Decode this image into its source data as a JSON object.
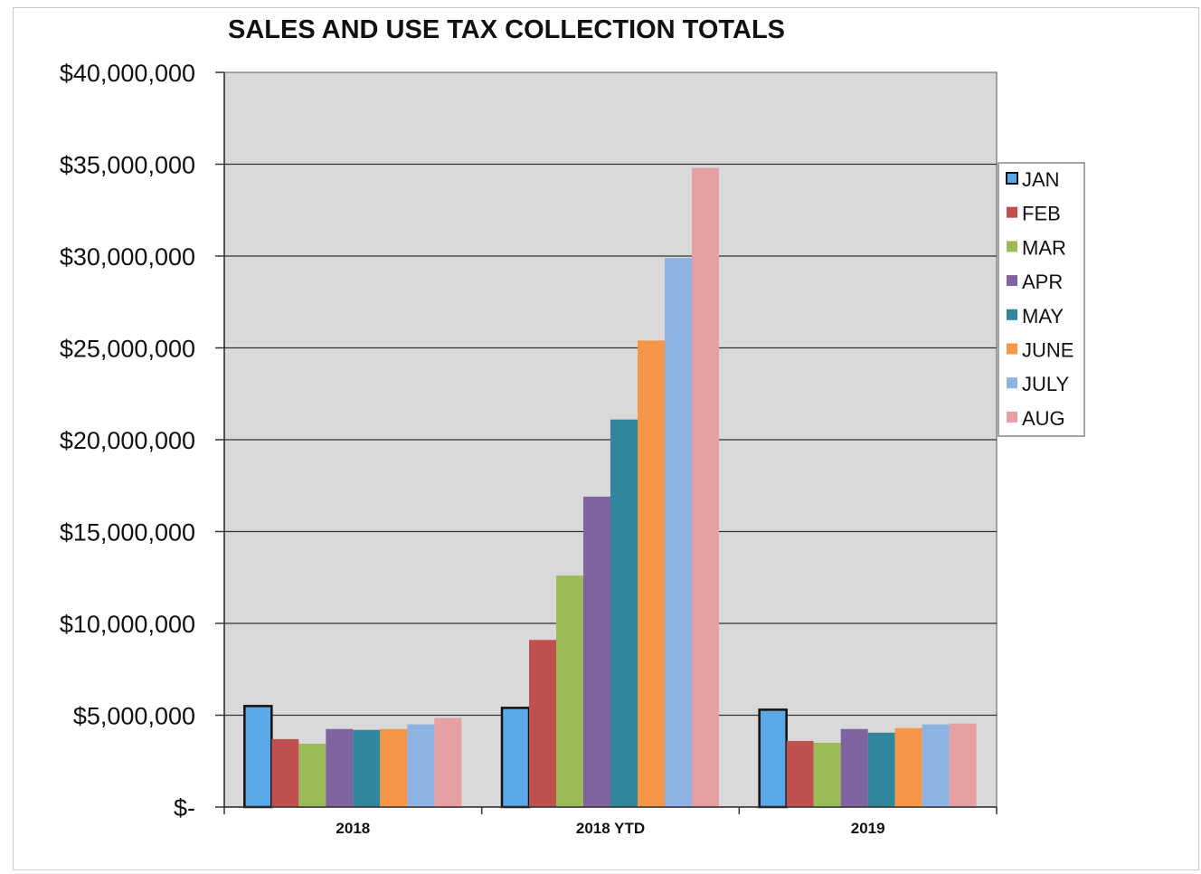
{
  "chart_data": {
    "type": "bar",
    "title": "SALES AND USE TAX COLLECTION TOTALS",
    "xlabel": "",
    "ylabel": "",
    "categories": [
      "2018",
      "2018 YTD",
      "2019"
    ],
    "ylim": [
      0,
      40000000
    ],
    "yticks": [
      0,
      5000000,
      10000000,
      15000000,
      20000000,
      25000000,
      30000000,
      35000000,
      40000000
    ],
    "ytick_labels": [
      "$-",
      "$5,000,000",
      "$10,000,000",
      "$15,000,000",
      "$20,000,000",
      "$25,000,000",
      "$30,000,000",
      "$35,000,000",
      "$40,000,000"
    ],
    "grid": true,
    "legend_position": "right",
    "plot_background": "#d9d9d9",
    "series": [
      {
        "name": "JAN",
        "color": "#5aa9e6",
        "values": [
          5500000,
          5400000,
          5300000
        ]
      },
      {
        "name": "FEB",
        "color": "#c0504d",
        "values": [
          3700000,
          9100000,
          3600000
        ]
      },
      {
        "name": "MAR",
        "color": "#9bbb59",
        "values": [
          3450000,
          12600000,
          3500000
        ]
      },
      {
        "name": "APR",
        "color": "#8064a2",
        "values": [
          4250000,
          16900000,
          4250000
        ]
      },
      {
        "name": "MAY",
        "color": "#31859c",
        "values": [
          4200000,
          21100000,
          4050000
        ]
      },
      {
        "name": "JUNE",
        "color": "#f79646",
        "values": [
          4250000,
          25400000,
          4300000
        ]
      },
      {
        "name": "JULY",
        "color": "#8db3e2",
        "values": [
          4500000,
          29900000,
          4500000
        ]
      },
      {
        "name": "AUG",
        "color": "#e6a0a3",
        "values": [
          4850000,
          34800000,
          4550000
        ]
      }
    ]
  }
}
